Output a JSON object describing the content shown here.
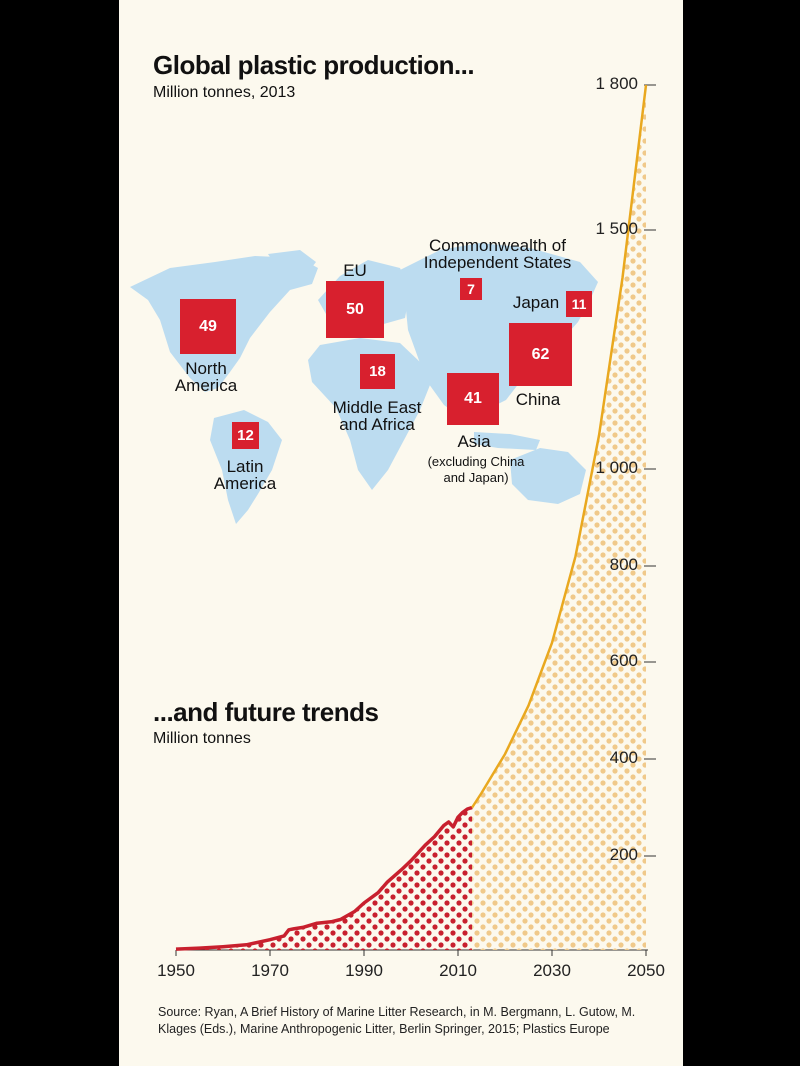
{
  "header": {
    "title": "Global plastic production...",
    "subtitle": "Million tonnes, 2013"
  },
  "trends": {
    "title": "...and future trends",
    "subtitle": "Million tonnes"
  },
  "source": "Source: Ryan, A Brief History of Marine Litter Research, in M. Bergmann, L. Gutow, M. Klages (Eds.), Marine Anthropogenic Litter, Berlin Springer, 2015; Plastics Europe",
  "regions": [
    {
      "name_line1": "North",
      "name_line2": "America",
      "value": "49"
    },
    {
      "name_line1": "EU",
      "name_line2": "",
      "value": "50"
    },
    {
      "name_line1": "Commonwealth of",
      "name_line2": "Independent States",
      "value": "7"
    },
    {
      "name_line1": "Japan",
      "name_line2": "",
      "value": "11"
    },
    {
      "name_line1": "China",
      "name_line2": "",
      "value": "62"
    },
    {
      "name_line1": "Middle East",
      "name_line2": "and Africa",
      "value": "18"
    },
    {
      "name_line1": "Asia",
      "name_line2": "",
      "note_line1": "(excluding China",
      "note_line2": "and Japan)",
      "value": "41"
    },
    {
      "name_line1": "Latin",
      "name_line2": "America",
      "value": "12"
    }
  ],
  "chart_data": {
    "type": "area",
    "y_tick_labels": [
      "200",
      "400",
      "600",
      "800",
      "1 000",
      "1 500",
      "1 800"
    ],
    "y_tick_values": [
      200,
      400,
      600,
      800,
      1000,
      1500,
      1800
    ],
    "x_tick_labels": [
      "1950",
      "1970",
      "1990",
      "2010",
      "2030",
      "2050"
    ],
    "x_tick_values": [
      1950,
      1970,
      1990,
      2010,
      2030,
      2050
    ],
    "xlim": [
      1950,
      2050
    ],
    "series": [
      {
        "kind": "historical",
        "color": "#c8202e",
        "x": [
          1950,
          1955,
          1960,
          1965,
          1970,
          1973,
          1974,
          1975,
          1977,
          1980,
          1983,
          1985,
          1988,
          1990,
          1993,
          1995,
          1998,
          2000,
          2003,
          2005,
          2007,
          2008,
          2009,
          2010,
          2011,
          2012,
          2013
        ],
        "y": [
          2,
          4,
          7,
          11,
          22,
          30,
          43,
          45,
          48,
          57,
          60,
          65,
          82,
          100,
          122,
          145,
          171,
          190,
          222,
          240,
          263,
          270,
          260,
          280,
          290,
          297,
          300
        ]
      },
      {
        "kind": "projection",
        "color": "#e9a81f",
        "x": [
          2013,
          2015,
          2020,
          2025,
          2030,
          2035,
          2040,
          2045,
          2050
        ],
        "y": [
          300,
          330,
          410,
          510,
          640,
          820,
          1070,
          1400,
          1800
        ]
      }
    ]
  }
}
